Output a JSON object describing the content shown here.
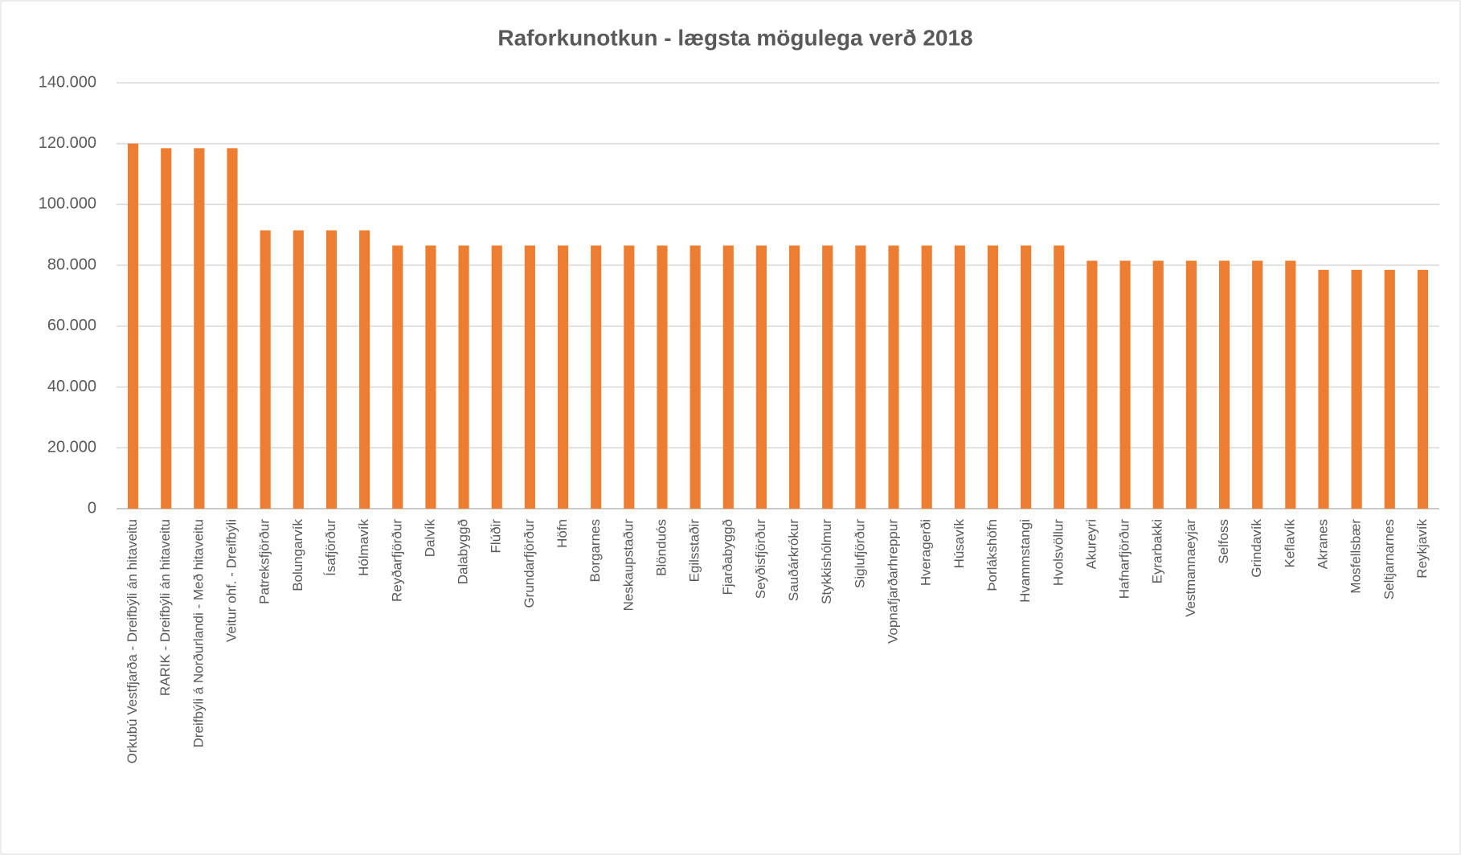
{
  "chart_data": {
    "type": "bar",
    "title": "Raforkunotkun - lægsta mögulega verð 2018",
    "categories": [
      "Orkubú Vestfjarða - Dreifbýli án hitaveitu",
      "RARIK - Dreifbýli án hitaveitu",
      "Dreifbýli á Norðurlandi - Með hitaveitu",
      "Veitur ohf. - Dreifbýli",
      "Patreksfjörður",
      "Bolungarvík",
      "Ísafjörður",
      "Hólmavík",
      "Reyðarfjörður",
      "Dalvík",
      "Dalabyggð",
      "Flúðir",
      "Grundarfjörður",
      "Höfn",
      "Borgarnes",
      "Neskaupstaður",
      "Blönduós",
      "Egilsstaðir",
      "Fjarðabyggð",
      "Seyðisfjörður",
      "Sauðárkrókur",
      "Stykkishólmur",
      "Siglufjörður",
      "Vopnafjarðarhreppur",
      "Hveragerði",
      "Húsavík",
      "Þorlákshöfn",
      "Hvammstangi",
      "Hvolsvöllur",
      "Akureyri",
      "Hafnarfjörður",
      "Eyrarbakki",
      "Vestmannaeyjar",
      "Selfoss",
      "Grindavík",
      "Keflavík",
      "Akranes",
      "Mosfellsbær",
      "Seltjarnarnes",
      "Reykjavík"
    ],
    "values": [
      120000,
      118500,
      118500,
      118500,
      91500,
      91500,
      91500,
      91500,
      86500,
      86500,
      86500,
      86500,
      86500,
      86500,
      86500,
      86500,
      86500,
      86500,
      86500,
      86500,
      86500,
      86500,
      86500,
      86500,
      86500,
      86500,
      86500,
      86500,
      86500,
      81500,
      81500,
      81500,
      81500,
      81500,
      81500,
      81500,
      78500,
      78500,
      78500,
      78500
    ],
    "color": "#ed7d31",
    "ylim": [
      0,
      140000
    ],
    "yticks": [
      0,
      {
        "value": 20000,
        "label": "20.000"
      },
      {
        "value": 40000,
        "label": "40.000"
      },
      {
        "value": 60000,
        "label": "60.000"
      },
      {
        "value": 80000,
        "label": "80.000"
      },
      {
        "value": 100000,
        "label": "100.000"
      },
      {
        "value": 120000,
        "label": "120.000"
      },
      {
        "value": 140000,
        "label": "140.000"
      }
    ],
    "grid": true
  }
}
